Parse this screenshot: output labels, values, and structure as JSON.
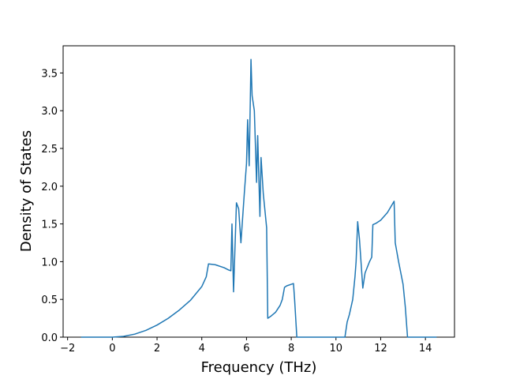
{
  "chart_data": {
    "type": "line",
    "x_label": "Frequency (THz)",
    "y_label": "Density of States",
    "x": [
      -1.4,
      0,
      0.5,
      1,
      1.5,
      2,
      2.5,
      3,
      3.5,
      4,
      4.2,
      4.3,
      4.6,
      5.0,
      5.2,
      5.3,
      5.35,
      5.42,
      5.55,
      5.65,
      5.75,
      5.9,
      6.0,
      6.05,
      6.12,
      6.2,
      6.25,
      6.35,
      6.45,
      6.5,
      6.6,
      6.65,
      6.75,
      6.9,
      6.95,
      7.1,
      7.3,
      7.5,
      7.6,
      7.7,
      7.8,
      8.0,
      8.1,
      8.15,
      8.25,
      10.4,
      10.5,
      10.6,
      10.75,
      10.85,
      10.9,
      10.97,
      11.05,
      11.2,
      11.3,
      11.5,
      11.6,
      11.65,
      11.8,
      12.0,
      12.3,
      12.6,
      12.65,
      12.8,
      13.0,
      13.1,
      13.2,
      14.5
    ],
    "series": [
      {
        "color": "#1f77b4",
        "values": [
          0,
          0,
          0.01,
          0.04,
          0.09,
          0.16,
          0.25,
          0.36,
          0.49,
          0.67,
          0.8,
          0.97,
          0.96,
          0.92,
          0.89,
          0.88,
          1.5,
          0.6,
          1.78,
          1.7,
          1.25,
          1.9,
          2.3,
          2.88,
          2.27,
          3.68,
          3.2,
          3.0,
          2.05,
          2.67,
          1.6,
          2.38,
          1.9,
          1.45,
          0.25,
          0.28,
          0.33,
          0.42,
          0.5,
          0.66,
          0.68,
          0.7,
          0.71,
          0.5,
          0,
          0,
          0.2,
          0.3,
          0.5,
          0.8,
          1.0,
          1.53,
          1.3,
          0.65,
          0.85,
          1.0,
          1.06,
          1.49,
          1.51,
          1.55,
          1.65,
          1.8,
          1.25,
          1.0,
          0.7,
          0.4,
          0,
          0
        ]
      }
    ],
    "xlim": [
      -2.2,
      15.3
    ],
    "ylim": [
      0,
      3.86
    ],
    "xticks": [
      {
        "value": -2,
        "label": "−2"
      },
      0,
      2,
      4,
      6,
      8,
      10,
      12,
      14
    ],
    "yticks": [
      {
        "value": 0,
        "label": "0.0"
      },
      0.5,
      {
        "value": 1,
        "label": "1.0"
      },
      1.5,
      {
        "value": 2,
        "label": "2.0"
      },
      2.5,
      {
        "value": 3,
        "label": "3.0"
      },
      3.5
    ]
  }
}
